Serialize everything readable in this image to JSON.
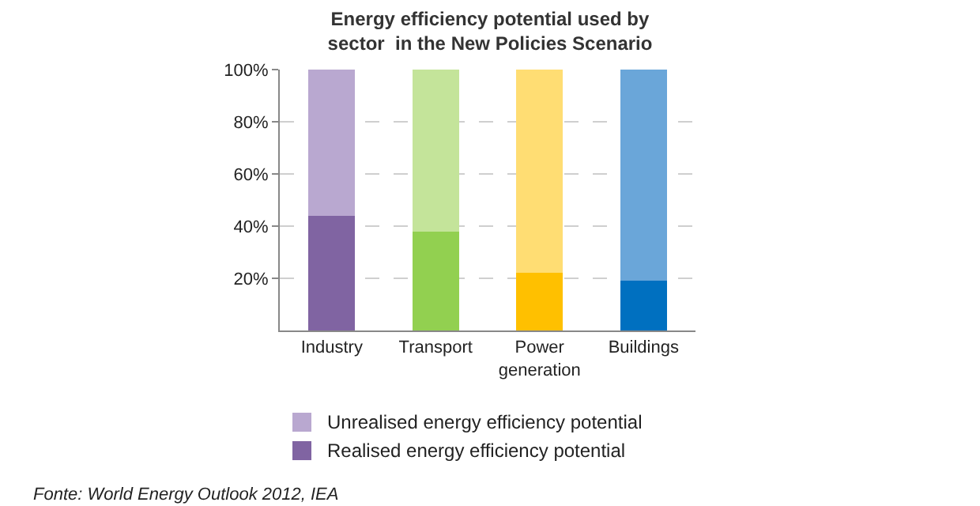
{
  "chart_data": {
    "type": "bar",
    "stacked": true,
    "title": "Energy efficiency potential used by\nsector  in the New Policies Scenario",
    "categories": [
      "Industry",
      "Transport",
      "Power\ngeneration",
      "Buildings"
    ],
    "series": [
      {
        "name": "Realised energy efficiency potential",
        "colors": [
          "#8064a2",
          "#92d050",
          "#ffc000",
          "#0070c0"
        ],
        "values": [
          44,
          38,
          22,
          19
        ]
      },
      {
        "name": "Unrealised energy efficiency potential",
        "colors": [
          "#b9a8d0",
          "#c4e49a",
          "#ffdd73",
          "#6aa6d9"
        ],
        "values": [
          56,
          62,
          78,
          81
        ]
      }
    ],
    "ylim": [
      0,
      100
    ],
    "yticks": [
      {
        "value": 20,
        "label": "20%"
      },
      {
        "value": 40,
        "label": "40%"
      },
      {
        "value": 60,
        "label": "60%"
      },
      {
        "value": 80,
        "label": "80%"
      },
      {
        "value": 100,
        "label": "100%"
      }
    ],
    "grid": "y",
    "legend": "bottom",
    "annotations": [
      "Fonte: World Energy Outlook 2012, IEA"
    ]
  }
}
